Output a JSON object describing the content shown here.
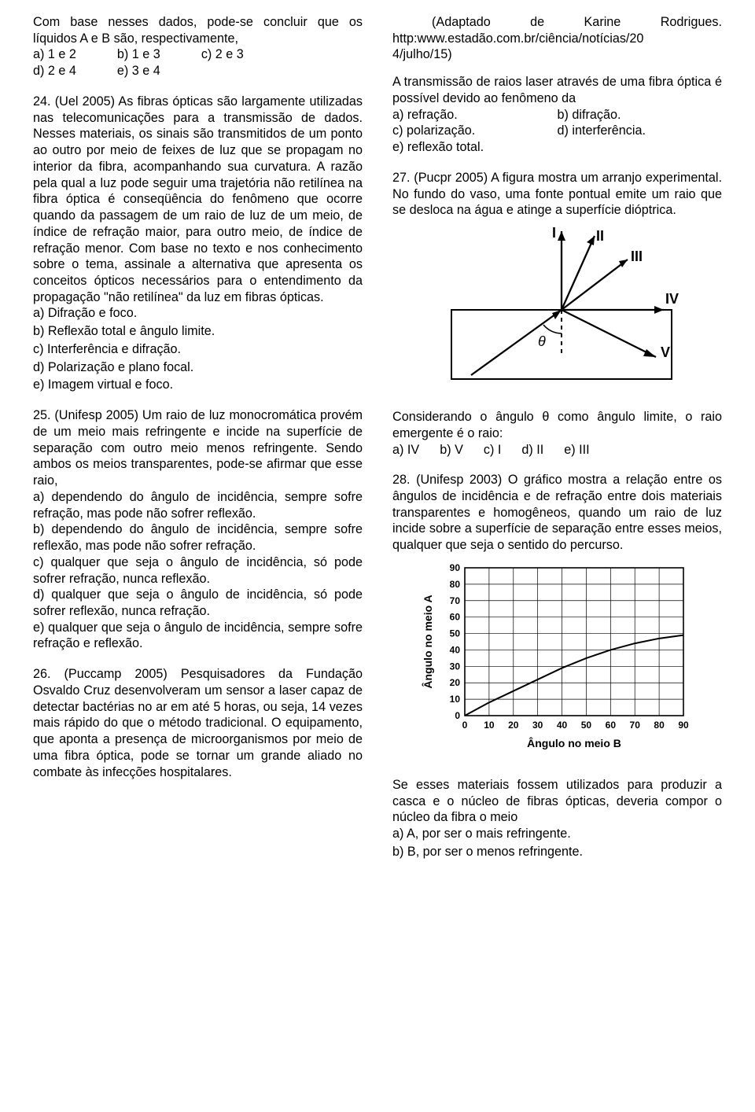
{
  "col1": {
    "intro_conclusion": "Com base nesses dados, pode-se concluir que os líquidos A e B são, respectivamente,",
    "intro_opts_row1": {
      "a": "a) 1 e 2",
      "b": "b) 1 e 3",
      "c": "c) 2 e 3"
    },
    "intro_opts_row2": {
      "d": "d) 2 e 4",
      "e": "e) 3 e 4"
    },
    "q24": "24. (Uel 2005) As fibras ópticas são largamente utilizadas nas telecomunicações para a transmissão de dados. Nesses materiais, os sinais são transmitidos de um ponto ao outro por meio de feixes de luz que se propagam no interior da fibra, acompanhando sua curvatura. A razão pela qual a luz pode seguir uma trajetória não retilínea na fibra óptica é conseqüência do fenômeno que ocorre quando da passagem de um raio de luz de um meio, de índice de refração maior, para outro meio, de índice de refração menor. Com base no texto e nos conhecimento sobre o tema, assinale a alternativa que apresenta os conceitos ópticos necessários para o entendimento da propagação \"não retilínea\" da luz em fibras ópticas.",
    "q24_a": "a) Difração e foco.",
    "q24_b": "b) Reflexão total e ângulo limite.",
    "q24_c": "c) Interferência e difração.",
    "q24_d": "d) Polarização e plano focal.",
    "q24_e": "e) Imagem virtual e foco.",
    "q25": "25. (Unifesp 2005) Um raio de luz monocromática provém de um meio mais refringente e incide na superfície de separação com outro meio menos refringente. Sendo ambos os meios transparentes, pode-se afirmar que esse raio,",
    "q25_a": "a) dependendo do ângulo de incidência, sempre sofre refração, mas pode não sofrer reflexão.",
    "q25_b": "b) dependendo do ângulo de incidência, sempre sofre reflexão, mas pode não sofrer refração.",
    "q25_c": "c) qualquer que seja o ângulo de incidência, só pode sofrer refração, nunca reflexão.",
    "q25_d": "d) qualquer que seja o ângulo de incidência, só pode sofrer reflexão, nunca refração.",
    "q25_e": "e) qualquer que seja o ângulo de incidência, sempre sofre refração e reflexão.",
    "q26": "26. (Puccamp 2005) Pesquisadores da Fundação Osvaldo Cruz desenvolveram um sensor a laser capaz de detectar bactérias no ar em até 5 horas, ou seja, 14 vezes mais rápido do que o método tradicional. O equipamento, que aponta a presença de microorganismos por meio de uma fibra óptica, pode se tornar um grande aliado no combate às infecções hospitalares."
  },
  "col2": {
    "source1": "(Adaptado de Karine Rodrigues.",
    "source2": "http:www.estadão.com.br/ciência/notícias/20",
    "source3": "4/julho/15)",
    "trans": "A transmissão de raios laser através de uma fibra óptica é possível devido ao fenômeno da",
    "trans_a": "a) refração.",
    "trans_b": "b) difração.",
    "trans_c": "c) polarização.",
    "trans_d": "d) interferência.",
    "trans_e": "e) reflexão total.",
    "q27": "27. (Pucpr 2005) A figura mostra um arranjo experimental. No fundo do vaso, uma fonte pontual emite um raio que se desloca na água e atinge a superfície dióptrica.",
    "fig1": {
      "labels": {
        "I": "I",
        "II": "II",
        "III": "III",
        "IV": "IV",
        "V": "V",
        "theta": "θ"
      }
    },
    "q27_b": "Considerando o ângulo θ como ângulo limite, o raio emergente é o raio:",
    "q27_opts": {
      "a": "a) IV",
      "b": "b) V",
      "c": "c) I",
      "d": "d) II",
      "e": "e) III"
    },
    "q28": "28. (Unifesp 2003) O gráfico mostra a relação entre os ângulos de incidência e de refração entre dois materiais transparentes e homogêneos, quando um raio de luz incide sobre a superfície de separação entre esses meios, qualquer que seja o sentido do percurso.",
    "chart": {
      "type": "line",
      "xlabel": "Ângulo no meio B",
      "ylabel": "Ângulo no meio A",
      "xlim": [
        0,
        90
      ],
      "ylim": [
        0,
        90
      ],
      "tick_step": 10,
      "xticks": [
        0,
        10,
        20,
        30,
        40,
        50,
        60,
        70,
        80,
        90
      ],
      "yticks": [
        0,
        10,
        20,
        30,
        40,
        50,
        60,
        70,
        80,
        90
      ],
      "data_x": [
        0,
        10,
        20,
        30,
        40,
        50,
        60,
        70,
        80,
        90
      ],
      "data_y": [
        0,
        8,
        15,
        22,
        29,
        35,
        40,
        44,
        47,
        49
      ],
      "line_color": "#000000",
      "line_width": 2,
      "grid_color": "#000000",
      "label_font": "bold 14px Arial",
      "tick_font": "bold 12px Arial"
    },
    "q28_b": "Se esses materiais fossem utilizados para produzir a casca e o núcleo de fibras ópticas, deveria compor o núcleo da fibra o meio",
    "q28_a_opt": "a) A, por ser o mais refringente.",
    "q28_b_opt": "b) B, por ser o menos refringente."
  }
}
